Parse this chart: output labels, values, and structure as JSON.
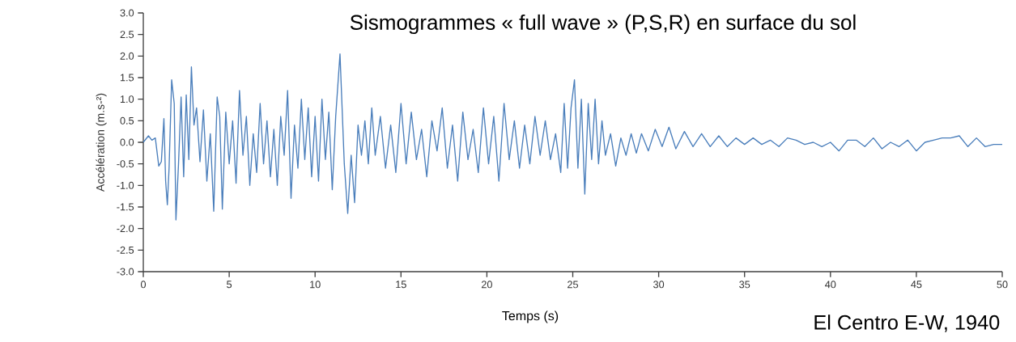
{
  "chart_data": {
    "type": "line",
    "title": "Sismogrammes « full wave » (P,S,R) en surface du sol",
    "xlabel": "Temps (s)",
    "ylabel": "Accélération (m.s-²)",
    "annotations": [
      "El Centro E-W, 1940"
    ],
    "xlim": [
      0,
      50
    ],
    "ylim": [
      -3,
      3
    ],
    "xticks": [
      0,
      5,
      10,
      15,
      20,
      25,
      30,
      35,
      40,
      45,
      50
    ],
    "yticks": [
      {
        "value": -3,
        "label": "-3.0"
      },
      {
        "value": -2.5,
        "label": "-2.5"
      },
      {
        "value": -2,
        "label": "-2.0"
      },
      {
        "value": -1.5,
        "label": "-1.5"
      },
      {
        "value": -1,
        "label": "-1.0"
      },
      {
        "value": -0.5,
        "label": "-0.5"
      },
      {
        "value": 0,
        "label": "0.0"
      },
      {
        "value": 0.5,
        "label": "0.5"
      },
      {
        "value": 1,
        "label": "1.0"
      },
      {
        "value": 1.5,
        "label": "1.5"
      },
      {
        "value": 2,
        "label": "2.0"
      },
      {
        "value": 2.5,
        "label": "2.5"
      },
      {
        "value": 3,
        "label": "3.0"
      }
    ],
    "line_style": "solid",
    "series": [
      {
        "color": "#4a7ebb",
        "x": [
          0,
          0.3,
          0.5,
          0.7,
          0.9,
          1.05,
          1.2,
          1.3,
          1.4,
          1.5,
          1.65,
          1.8,
          1.9,
          2.05,
          2.2,
          2.35,
          2.5,
          2.65,
          2.8,
          2.95,
          3.1,
          3.3,
          3.5,
          3.7,
          3.9,
          4.1,
          4.3,
          4.45,
          4.6,
          4.8,
          5.0,
          5.2,
          5.4,
          5.6,
          5.8,
          6.0,
          6.2,
          6.4,
          6.6,
          6.8,
          7.0,
          7.2,
          7.4,
          7.6,
          7.8,
          8.0,
          8.2,
          8.4,
          8.6,
          8.8,
          9.0,
          9.2,
          9.4,
          9.6,
          9.8,
          10.0,
          10.2,
          10.4,
          10.6,
          10.8,
          11.0,
          11.2,
          11.45,
          11.7,
          11.9,
          12.1,
          12.3,
          12.5,
          12.7,
          12.9,
          13.1,
          13.3,
          13.5,
          13.8,
          14.1,
          14.4,
          14.7,
          15.0,
          15.3,
          15.6,
          15.9,
          16.2,
          16.5,
          16.8,
          17.1,
          17.4,
          17.7,
          18.0,
          18.3,
          18.6,
          18.9,
          19.2,
          19.5,
          19.8,
          20.1,
          20.4,
          20.7,
          21.0,
          21.3,
          21.6,
          21.9,
          22.2,
          22.5,
          22.8,
          23.1,
          23.4,
          23.7,
          24.0,
          24.3,
          24.5,
          24.7,
          24.9,
          25.1,
          25.3,
          25.5,
          25.7,
          25.9,
          26.1,
          26.3,
          26.5,
          26.7,
          26.9,
          27.2,
          27.5,
          27.8,
          28.1,
          28.4,
          28.7,
          29.0,
          29.4,
          29.8,
          30.2,
          30.6,
          31.0,
          31.5,
          32.0,
          32.5,
          33.0,
          33.5,
          34.0,
          34.5,
          35.0,
          35.5,
          36.0,
          36.5,
          37.0,
          37.5,
          38.0,
          38.5,
          39.0,
          39.5,
          40.0,
          40.5,
          41.0,
          41.5,
          42.0,
          42.5,
          43.0,
          43.5,
          44.0,
          44.5,
          45.0,
          45.5,
          46.0,
          46.5,
          47.0,
          47.5,
          48.0,
          48.5,
          49.0,
          49.5,
          50.0
        ],
        "values": [
          0.0,
          0.15,
          0.05,
          0.1,
          -0.55,
          -0.45,
          0.55,
          -0.9,
          -1.45,
          -0.6,
          1.45,
          0.9,
          -1.8,
          -0.5,
          1.05,
          -0.8,
          1.1,
          -0.4,
          1.75,
          0.4,
          0.8,
          -0.45,
          0.75,
          -0.9,
          0.2,
          -1.6,
          1.05,
          0.6,
          -1.55,
          0.7,
          -0.5,
          0.5,
          -0.95,
          1.2,
          -0.3,
          0.6,
          -1.0,
          0.2,
          -0.7,
          0.9,
          -0.5,
          0.5,
          -0.8,
          0.3,
          -1.0,
          0.6,
          -0.3,
          1.2,
          -1.3,
          0.4,
          -0.6,
          1.0,
          -0.4,
          0.8,
          -0.8,
          0.6,
          -0.9,
          1.0,
          -0.4,
          0.7,
          -1.1,
          0.6,
          2.05,
          -0.5,
          -1.65,
          -0.3,
          -1.4,
          0.4,
          -0.3,
          0.5,
          -0.5,
          0.8,
          -0.3,
          0.6,
          -0.6,
          0.4,
          -0.7,
          0.9,
          -0.5,
          0.7,
          -0.4,
          0.3,
          -0.8,
          0.5,
          -0.2,
          0.8,
          -0.6,
          0.4,
          -0.9,
          0.7,
          -0.4,
          0.3,
          -0.7,
          0.8,
          -0.5,
          0.6,
          -0.9,
          0.9,
          -0.4,
          0.5,
          -0.6,
          0.4,
          -0.5,
          0.6,
          -0.3,
          0.5,
          -0.4,
          0.2,
          -0.7,
          0.9,
          -0.6,
          0.8,
          1.45,
          -0.6,
          1.0,
          -1.2,
          0.9,
          -0.4,
          1.0,
          -0.5,
          0.5,
          -0.3,
          0.2,
          -0.55,
          0.1,
          -0.3,
          0.2,
          -0.25,
          0.2,
          -0.2,
          0.3,
          -0.1,
          0.35,
          -0.15,
          0.25,
          -0.1,
          0.2,
          -0.1,
          0.15,
          -0.1,
          0.1,
          -0.05,
          0.1,
          -0.05,
          0.05,
          -0.1,
          0.1,
          0.05,
          -0.05,
          0.0,
          -0.1,
          0.0,
          -0.2,
          0.05,
          0.05,
          -0.1,
          0.1,
          -0.15,
          0.0,
          -0.1,
          0.05,
          -0.2,
          0.0,
          0.05,
          0.1,
          0.1,
          0.15,
          -0.1,
          0.1,
          -0.1,
          -0.05,
          -0.05
        ]
      }
    ]
  }
}
